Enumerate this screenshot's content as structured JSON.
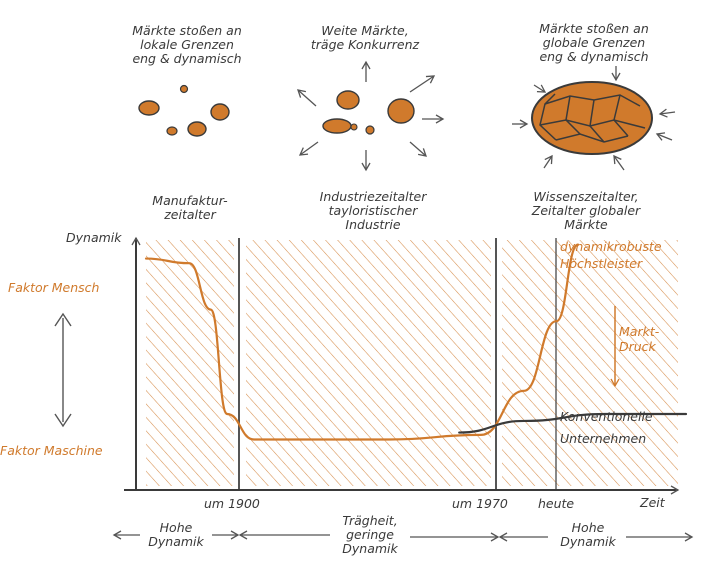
{
  "scenarios": [
    {
      "lines": [
        "Märkte stoßen an",
        "lokale Grenzen",
        "eng & dynamisch"
      ]
    },
    {
      "lines": [
        "Weite Märkte,",
        "träge Konkurrenz"
      ]
    },
    {
      "lines": [
        "Märkte stoßen an",
        "globale Grenzen",
        "eng & dynamisch"
      ]
    }
  ],
  "eras": [
    {
      "lines": [
        "Manufaktur-",
        "zeitalter"
      ]
    },
    {
      "lines": [
        "Industriezeitalter",
        "tayloristischer",
        "Industrie"
      ]
    },
    {
      "lines": [
        "Wissenszeitalter,",
        "Zeitalter globaler",
        "Märkte"
      ]
    }
  ],
  "axes": {
    "y_label": "Dynamik",
    "x_label": "Zeit",
    "ticks": [
      "um 1900",
      "um 1970",
      "heute"
    ]
  },
  "side_labels": {
    "top": "Faktor Mensch",
    "bottom": "Faktor Maschine"
  },
  "curve_labels": {
    "robust": [
      "dynamikrobuste",
      "Höchstleister"
    ],
    "pressure": [
      "Markt-",
      "Druck"
    ],
    "conventional": [
      "Konventionelle",
      "Unternehmen"
    ]
  },
  "bottom_phases": [
    {
      "lines": [
        "Hohe",
        "Dynamik"
      ]
    },
    {
      "lines": [
        "Trägheit,",
        "geringe",
        "Dynamik"
      ]
    },
    {
      "lines": [
        "Hohe",
        "Dynamik"
      ]
    }
  ],
  "chart_data": {
    "type": "line",
    "xlabel": "Zeit",
    "ylabel": "Dynamik",
    "note": "schematic, no numeric scale; x and y normalized 0..1",
    "series": [
      {
        "name": "dynamikrobuste Höchstleister",
        "points": [
          [
            0.0,
            0.92
          ],
          [
            0.08,
            0.9
          ],
          [
            0.12,
            0.7
          ],
          [
            0.15,
            0.25
          ],
          [
            0.2,
            0.14
          ],
          [
            0.45,
            0.14
          ],
          [
            0.62,
            0.16
          ],
          [
            0.7,
            0.35
          ],
          [
            0.76,
            0.65
          ],
          [
            0.8,
            0.98
          ]
        ]
      },
      {
        "name": "Konventionelle Unternehmen",
        "points": [
          [
            0.58,
            0.17
          ],
          [
            0.7,
            0.22
          ],
          [
            0.85,
            0.25
          ],
          [
            1.0,
            0.25
          ]
        ]
      }
    ],
    "ticks": [
      "um 1900",
      "um 1970",
      "heute"
    ]
  },
  "colors": {
    "accent": "#d07a2c",
    "ink": "#3a3a3a",
    "blob": "#d07a2c"
  }
}
